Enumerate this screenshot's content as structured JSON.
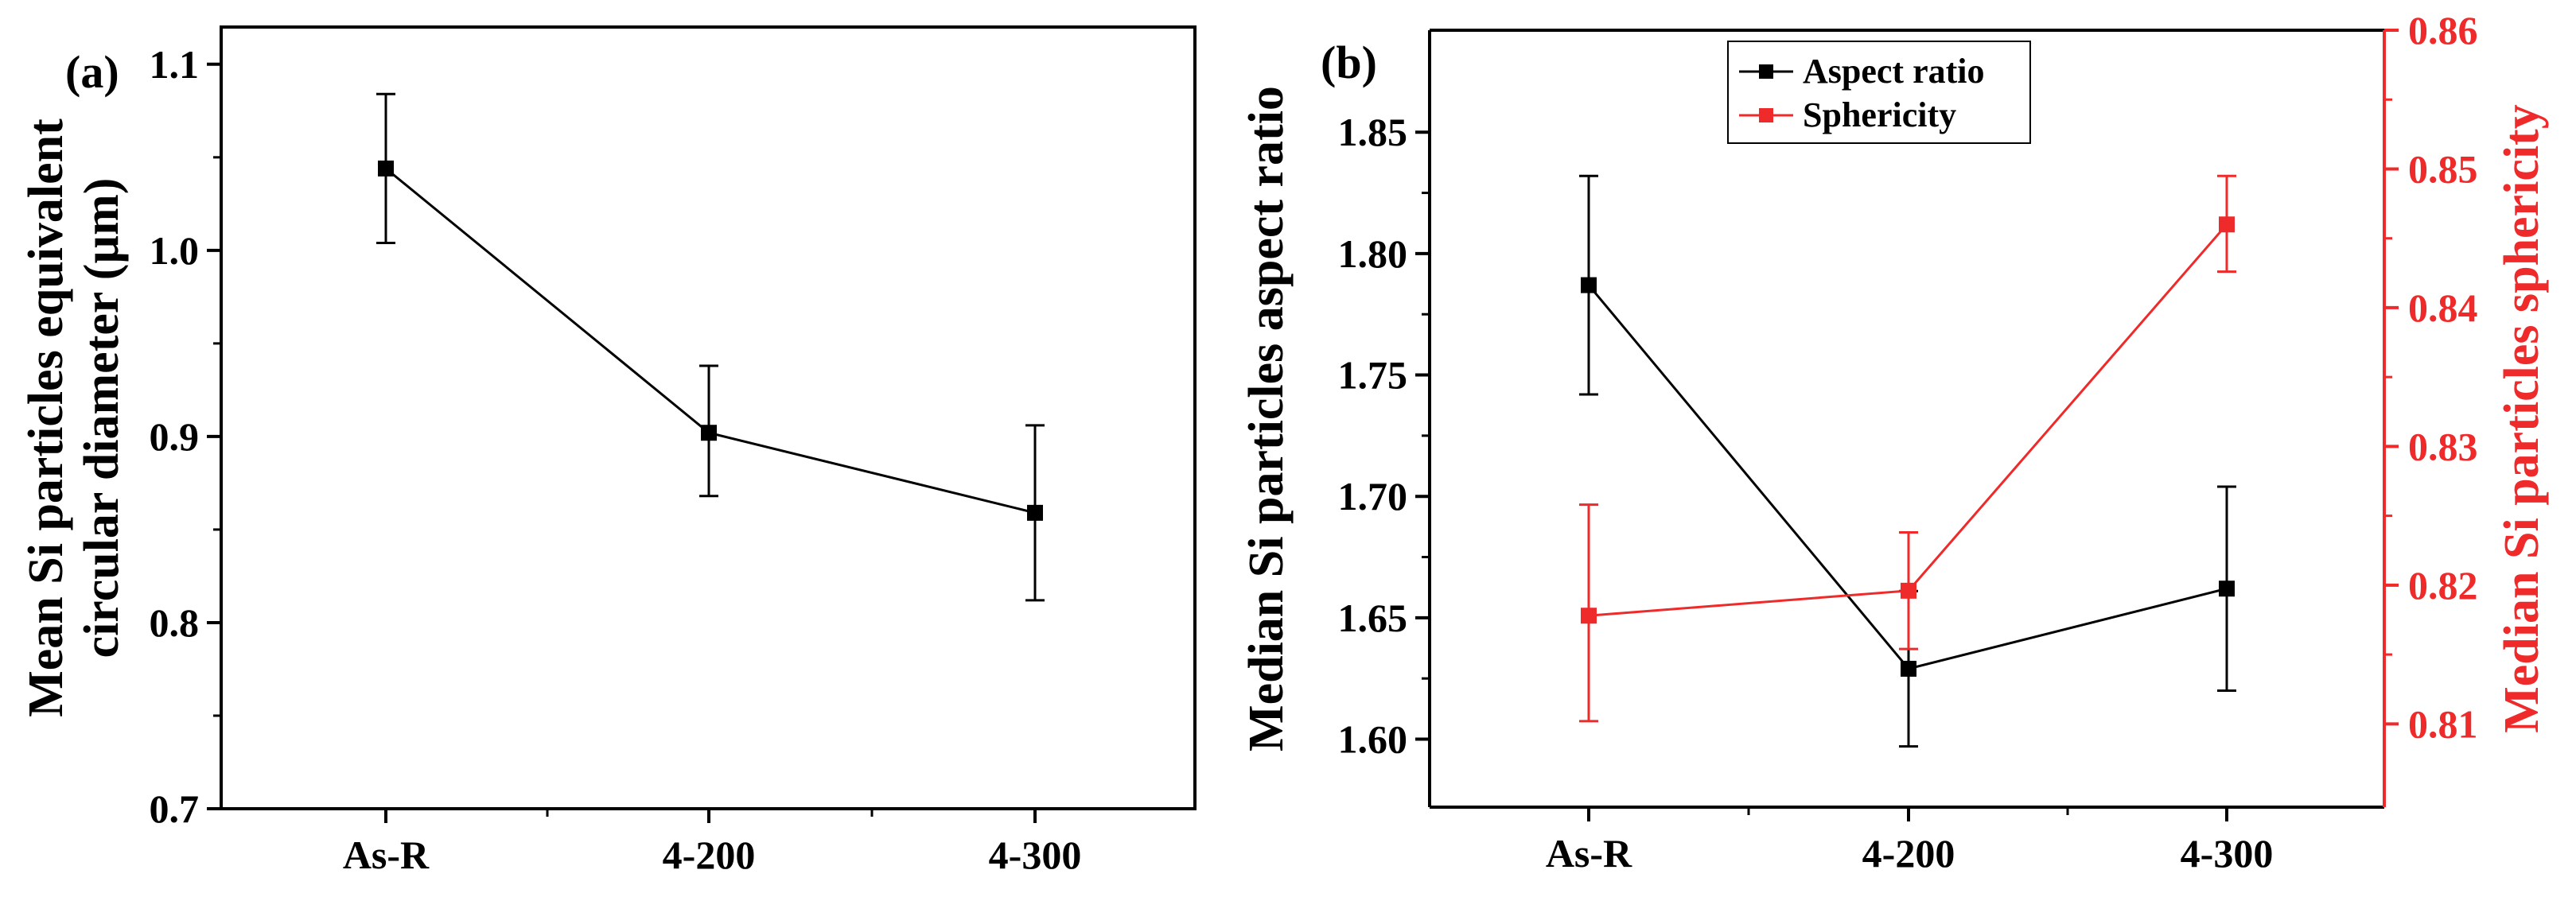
{
  "chart_data": [
    {
      "type": "line",
      "panel_label": "(a)",
      "categories": [
        "As-R",
        "4-200",
        "4-300"
      ],
      "ylabel_lines": [
        "Mean Si particles equivalent",
        "circular diameter (µm)"
      ],
      "ylim": [
        0.7,
        1.12
      ],
      "yticks": [
        "0.7",
        "0.8",
        "0.9",
        "1.0",
        "1.1"
      ],
      "series": [
        {
          "name": "Mean Si particles equivalent circular diameter",
          "color": "#000000",
          "values": [
            1.044,
            0.902,
            0.859
          ],
          "err_low": [
            1.004,
            0.868,
            0.812
          ],
          "err_high": [
            1.084,
            0.938,
            0.906
          ]
        }
      ]
    },
    {
      "type": "line",
      "panel_label": "(b)",
      "categories": [
        "As-R",
        "4-200",
        "4-300"
      ],
      "ylabel_left": "Median Si particles aspect ratio",
      "ylabel_right": "Median Si particles sphericity",
      "ylim_left": [
        1.572,
        1.892
      ],
      "ylim_right": [
        0.804,
        0.86
      ],
      "yticks_left": [
        "1.60",
        "1.65",
        "1.70",
        "1.75",
        "1.80",
        "1.85"
      ],
      "yticks_right": [
        "0.81",
        "0.82",
        "0.83",
        "0.84",
        "0.85",
        "0.86"
      ],
      "legend": {
        "position": "top-center",
        "entries": [
          "Aspect ratio",
          "Sphericity"
        ]
      },
      "series": [
        {
          "name": "Aspect ratio",
          "axis": "left",
          "color": "#000000",
          "values": [
            1.787,
            1.629,
            1.662
          ],
          "err_low": [
            1.742,
            1.597,
            1.62
          ],
          "err_high": [
            1.832,
            1.661,
            1.704
          ]
        },
        {
          "name": "Sphericity",
          "axis": "right",
          "color": "#ee2a2a",
          "values": [
            0.8178,
            0.8196,
            0.846
          ],
          "err_low": [
            0.8102,
            0.8154,
            0.8426
          ],
          "err_high": [
            0.8258,
            0.8238,
            0.8495
          ]
        }
      ]
    }
  ]
}
